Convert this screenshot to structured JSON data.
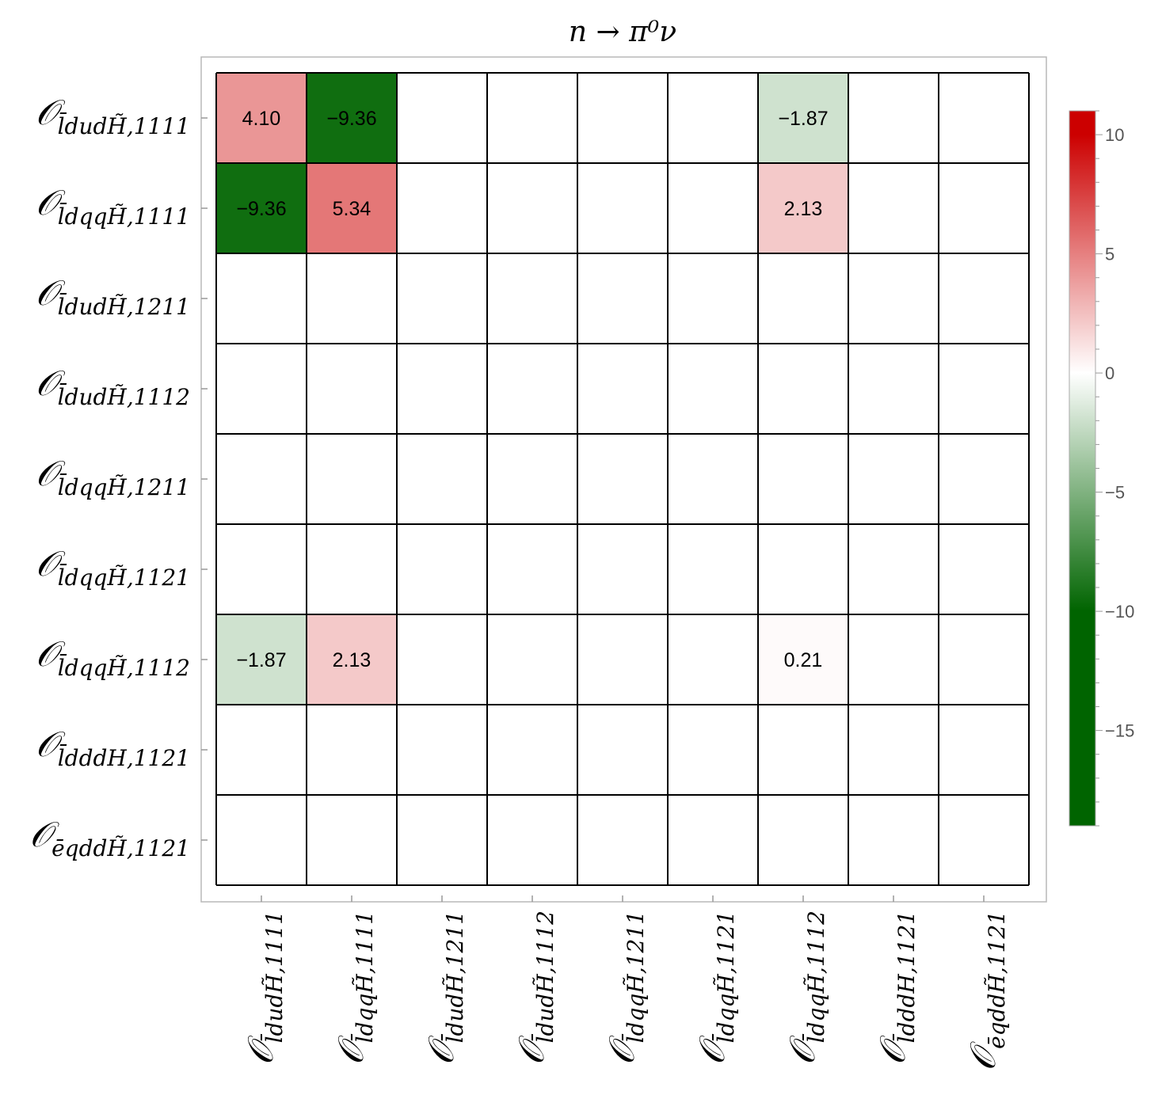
{
  "chart_data": {
    "type": "heatmap",
    "title": "n → π⁰ν",
    "rows": [
      {
        "op": "ldudH̃",
        "bar": "l",
        "tilde": true,
        "idx": "1111"
      },
      {
        "op": "ldqqH̃",
        "bar": "l",
        "tilde": true,
        "idx": "1111"
      },
      {
        "op": "ldudH̃",
        "bar": "l",
        "tilde": true,
        "idx": "1211"
      },
      {
        "op": "ldudH̃",
        "bar": "l",
        "tilde": true,
        "idx": "1112"
      },
      {
        "op": "ldqqH̃",
        "bar": "l",
        "tilde": true,
        "idx": "1211"
      },
      {
        "op": "ldqqH̃",
        "bar": "l",
        "tilde": true,
        "idx": "1121"
      },
      {
        "op": "ldqqH̃",
        "bar": "l",
        "tilde": true,
        "idx": "1112"
      },
      {
        "op": "ldddH",
        "bar": "l",
        "tilde": false,
        "idx": "1121"
      },
      {
        "op": "eqddH̃",
        "bar": "e",
        "tilde": true,
        "idx": "1121"
      }
    ],
    "columns": [
      {
        "op": "ldudH̃",
        "bar": "l",
        "tilde": true,
        "idx": "1111"
      },
      {
        "op": "ldqqH̃",
        "bar": "l",
        "tilde": true,
        "idx": "1111"
      },
      {
        "op": "ldudH̃",
        "bar": "l",
        "tilde": true,
        "idx": "1211"
      },
      {
        "op": "ldudH̃",
        "bar": "l",
        "tilde": true,
        "idx": "1112"
      },
      {
        "op": "ldqqH̃",
        "bar": "l",
        "tilde": true,
        "idx": "1211"
      },
      {
        "op": "ldqqH̃",
        "bar": "l",
        "tilde": true,
        "idx": "1121"
      },
      {
        "op": "ldqqH̃",
        "bar": "l",
        "tilde": true,
        "idx": "1112"
      },
      {
        "op": "ldddH",
        "bar": "l",
        "tilde": false,
        "idx": "1121"
      },
      {
        "op": "eqddH̃",
        "bar": "e",
        "tilde": true,
        "idx": "1121"
      }
    ],
    "cells": [
      {
        "row": 0,
        "col": 0,
        "value": 4.1,
        "label": "4.10"
      },
      {
        "row": 0,
        "col": 1,
        "value": -9.36,
        "label": "−9.36"
      },
      {
        "row": 0,
        "col": 6,
        "value": -1.87,
        "label": "−1.87"
      },
      {
        "row": 1,
        "col": 0,
        "value": -9.36,
        "label": "−9.36"
      },
      {
        "row": 1,
        "col": 1,
        "value": 5.34,
        "label": "5.34"
      },
      {
        "row": 1,
        "col": 6,
        "value": 2.13,
        "label": "2.13"
      },
      {
        "row": 6,
        "col": 0,
        "value": -1.87,
        "label": "−1.87"
      },
      {
        "row": 6,
        "col": 1,
        "value": 2.13,
        "label": "2.13"
      },
      {
        "row": 6,
        "col": 6,
        "value": 0.21,
        "label": "0.21"
      }
    ],
    "colorbar": {
      "range": [
        -19,
        11
      ],
      "ticks": [
        {
          "value": 10,
          "label": "10"
        },
        {
          "value": 5,
          "label": "5"
        },
        {
          "value": 0,
          "label": "0"
        },
        {
          "value": -5,
          "label": "−5"
        },
        {
          "value": -10,
          "label": "−10"
        },
        {
          "value": -15,
          "label": "−15"
        }
      ],
      "colors": {
        "positive": "#cc0000",
        "negative": "#006400",
        "zero": "#ffffff"
      },
      "saturation_abs": 10
    },
    "grid": true
  }
}
